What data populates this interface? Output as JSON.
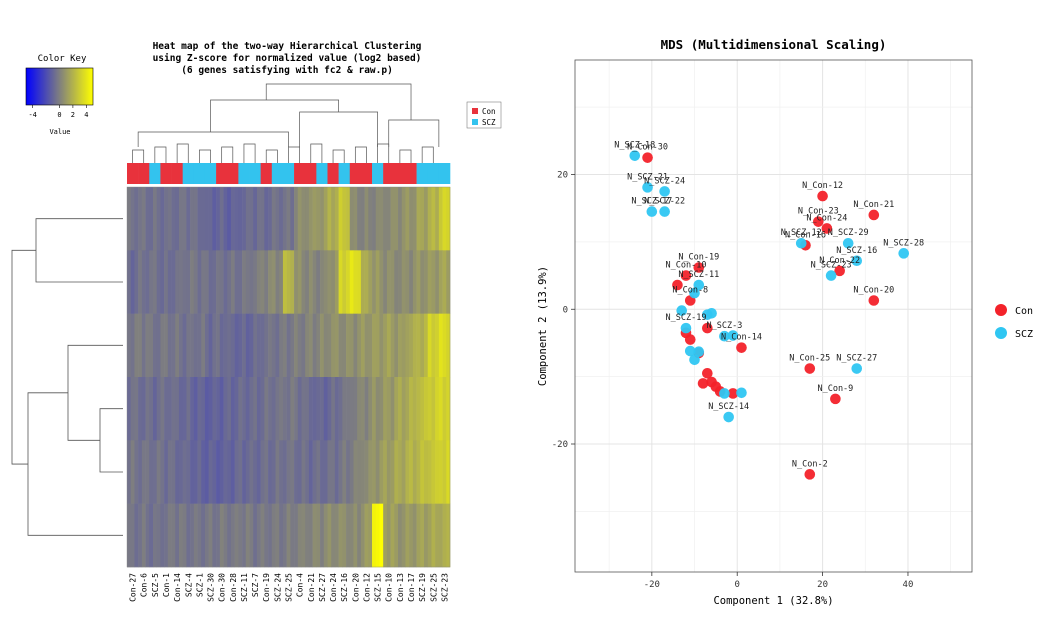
{
  "chart_data": [
    {
      "type": "heatmap",
      "title_lines": [
        "Heat map of the two-way Hierarchical Clustering",
        "using Z-score for normalized value (log2 based)",
        "(6 genes satisfying with fc2 & raw.p)"
      ],
      "color_key": {
        "title": "Color Key",
        "label": "Value",
        "ticks": [
          "-4",
          "0",
          "2",
          "4"
        ],
        "tick_values": [
          -4,
          0,
          2,
          4
        ],
        "range": [
          -5,
          5
        ],
        "low_color": "#0000ff",
        "mid_color": "#7f7f7f",
        "high_color": "#ffff00"
      },
      "legend": [
        {
          "label": "Con",
          "color": "#e8323c"
        },
        {
          "label": "SCZ",
          "color": "#33c3ee"
        }
      ],
      "columns": [
        "Con-27",
        "Con-6",
        "SCZ-5",
        "Con-1",
        "Con-14",
        "SCZ-4",
        "SCZ-1",
        "SCZ-30",
        "Con-30",
        "Con-28",
        "SCZ-11",
        "SCZ-7",
        "Con-19",
        "SCZ-24",
        "SCZ-25",
        "Con-4",
        "Con-21",
        "SCZ-27",
        "Con-24",
        "SCZ-16",
        "Con-20",
        "Con-12",
        "SCZ-15",
        "Con-10",
        "Con-13",
        "Con-17",
        "SCZ-19",
        "SCZ-25",
        "SCZ-23"
      ],
      "column_groups": [
        "Con",
        "Con",
        "SCZ",
        "Con",
        "Con",
        "SCZ",
        "SCZ",
        "SCZ",
        "Con",
        "Con",
        "SCZ",
        "SCZ",
        "Con",
        "SCZ",
        "SCZ",
        "Con",
        "Con",
        "SCZ",
        "Con",
        "SCZ",
        "Con",
        "Con",
        "SCZ",
        "Con",
        "Con",
        "Con",
        "SCZ",
        "SCZ",
        "SCZ"
      ],
      "rows": 6,
      "values": [
        [
          -0.5,
          -0.5,
          -0.6,
          -0.7,
          -0.7,
          -0.6,
          -0.8,
          -1.2,
          -1.1,
          -1.3,
          -1.0,
          -0.8,
          -0.9,
          -0.6,
          -0.5,
          0.5,
          0.8,
          1.0,
          1.8,
          2.8,
          0.4,
          0.2,
          0.3,
          0.4,
          0.6,
          0.8,
          1.4,
          2.0,
          3.2
        ],
        [
          -0.9,
          -0.6,
          -0.5,
          -0.8,
          -0.6,
          -0.4,
          -0.5,
          -0.7,
          -0.6,
          -0.5,
          -0.4,
          -0.2,
          0.2,
          0.3,
          2.2,
          0.6,
          0.3,
          0.2,
          0.8,
          3.3,
          3.8,
          1.6,
          0.9,
          0.6,
          0.4,
          0.5,
          0.8,
          1.0,
          1.4
        ],
        [
          -0.3,
          -0.2,
          -0.5,
          -0.3,
          -0.4,
          -0.6,
          -0.5,
          -0.9,
          -0.8,
          -1.0,
          -1.1,
          -0.9,
          -0.6,
          -0.5,
          -0.3,
          -0.1,
          0.2,
          0.4,
          0.7,
          0.5,
          0.6,
          0.9,
          1.1,
          1.3,
          1.0,
          1.6,
          2.0,
          3.2,
          3.6
        ],
        [
          -0.6,
          -0.8,
          -0.9,
          -0.7,
          -0.8,
          -1.0,
          -1.2,
          -1.4,
          -1.3,
          -1.1,
          -0.9,
          -0.8,
          -0.6,
          -0.5,
          -0.4,
          -0.6,
          -0.9,
          -1.1,
          -0.8,
          -0.4,
          0.0,
          0.3,
          0.7,
          1.0,
          1.5,
          1.9,
          2.5,
          3.0,
          3.3
        ],
        [
          -0.4,
          -0.5,
          -0.6,
          -0.7,
          -0.9,
          -1.0,
          -1.2,
          -1.3,
          -1.4,
          -1.2,
          -1.0,
          -0.9,
          -0.7,
          -0.6,
          -0.5,
          -0.7,
          -0.9,
          -0.8,
          -0.6,
          -0.3,
          0.1,
          0.5,
          0.9,
          1.2,
          1.6,
          2.0,
          2.4,
          2.8,
          3.2
        ],
        [
          -0.5,
          -0.4,
          -0.6,
          -0.5,
          -0.3,
          -0.5,
          -0.4,
          -0.3,
          -0.2,
          -0.3,
          -0.2,
          -0.4,
          -0.3,
          -0.2,
          -0.1,
          0.1,
          0.2,
          0.3,
          0.5,
          0.6,
          0.4,
          1.0,
          4.8,
          1.2,
          0.8,
          1.0,
          1.3,
          1.6,
          1.8
        ]
      ]
    },
    {
      "type": "scatter",
      "title": "MDS (Multidimensional Scaling)",
      "xlabel": "Component 1 (32.8%)",
      "ylabel": "Component 2 (13.9%)",
      "xlim": [
        -38,
        55
      ],
      "ylim": [
        -39,
        37
      ],
      "xticks": [
        -20,
        0,
        20,
        40
      ],
      "yticks": [
        20,
        0,
        -20
      ],
      "grid": true,
      "legend_position": "right",
      "series": [
        {
          "name": "Con",
          "color": "#f3222a",
          "points": [
            {
              "x": -21,
              "y": 22.5,
              "label": "N_Con-30"
            },
            {
              "x": 20,
              "y": 16.8,
              "label": "N_Con-12"
            },
            {
              "x": 32,
              "y": 14,
              "label": "N_Con-21"
            },
            {
              "x": 19,
              "y": 13,
              "label": "N_Con-23"
            },
            {
              "x": 21,
              "y": 12,
              "label": "N_Con-24"
            },
            {
              "x": 16,
              "y": 9.5,
              "label": "N_Con-16"
            },
            {
              "x": 24,
              "y": 5.7,
              "label": "N_Con-22"
            },
            {
              "x": 32,
              "y": 1.3,
              "label": "N_Con-20"
            },
            {
              "x": -9,
              "y": 6.2,
              "label": "N_Con-19"
            },
            {
              "x": -12,
              "y": 5,
              "label": "N_Con-10"
            },
            {
              "x": -14,
              "y": 3.6,
              "label": ""
            },
            {
              "x": -11,
              "y": 1.3,
              "label": "N_Con-8"
            },
            {
              "x": 1,
              "y": -5.7,
              "label": "N_Con-14"
            },
            {
              "x": 17,
              "y": -8.8,
              "label": "N_Con-25"
            },
            {
              "x": 23,
              "y": -13.3,
              "label": "N_Con-9"
            },
            {
              "x": 17,
              "y": -24.5,
              "label": "N_Con-2"
            },
            {
              "x": -12,
              "y": -3.5,
              "label": ""
            },
            {
              "x": -11,
              "y": -4.5,
              "label": ""
            },
            {
              "x": -7,
              "y": -2.8,
              "label": ""
            },
            {
              "x": -9,
              "y": -6.5,
              "label": ""
            },
            {
              "x": -7,
              "y": -9.5,
              "label": ""
            },
            {
              "x": -6,
              "y": -10.8,
              "label": ""
            },
            {
              "x": -5,
              "y": -11.5,
              "label": ""
            },
            {
              "x": -4,
              "y": -12.2,
              "label": ""
            },
            {
              "x": -1,
              "y": -12.5,
              "label": ""
            },
            {
              "x": -8,
              "y": -11,
              "label": ""
            }
          ]
        },
        {
          "name": "SCZ",
          "color": "#2fc6f2",
          "points": [
            {
              "x": -24,
              "y": 22.8,
              "label": "N_SCZ-18"
            },
            {
              "x": -21,
              "y": 18.1,
              "label": "N_SCZ-21"
            },
            {
              "x": -17,
              "y": 17.5,
              "label": "N_SCZ-24"
            },
            {
              "x": -20,
              "y": 14.5,
              "label": "N_SCZ-17"
            },
            {
              "x": -17,
              "y": 14.5,
              "label": "N_SCZ-22"
            },
            {
              "x": 15,
              "y": 9.8,
              "label": "N_SCZ-12"
            },
            {
              "x": 26,
              "y": 9.8,
              "label": "N_SCZ-29"
            },
            {
              "x": 28,
              "y": 7.2,
              "label": "N_SCZ-16"
            },
            {
              "x": 39,
              "y": 8.3,
              "label": "N_SCZ-28"
            },
            {
              "x": 22,
              "y": 5,
              "label": "N_SCZ-23"
            },
            {
              "x": -9,
              "y": 3.6,
              "label": "N_SCZ-11"
            },
            {
              "x": -10,
              "y": 2.4,
              "label": ""
            },
            {
              "x": -13,
              "y": -0.2,
              "label": ""
            },
            {
              "x": -12,
              "y": -2.8,
              "label": "N_SCZ-19"
            },
            {
              "x": -3,
              "y": -4,
              "label": "N_SCZ-3"
            },
            {
              "x": -1,
              "y": -3.9,
              "label": ""
            },
            {
              "x": -7,
              "y": -0.8,
              "label": ""
            },
            {
              "x": -6,
              "y": -0.6,
              "label": ""
            },
            {
              "x": -11,
              "y": -6.2,
              "label": ""
            },
            {
              "x": -10,
              "y": -7.5,
              "label": ""
            },
            {
              "x": -9,
              "y": -6.3,
              "label": ""
            },
            {
              "x": 28,
              "y": -8.8,
              "label": "N_SCZ-27"
            },
            {
              "x": -3,
              "y": -12.5,
              "label": ""
            },
            {
              "x": 1,
              "y": -12.4,
              "label": ""
            },
            {
              "x": -2,
              "y": -16,
              "label": "N_SCZ-14"
            }
          ]
        }
      ]
    }
  ]
}
